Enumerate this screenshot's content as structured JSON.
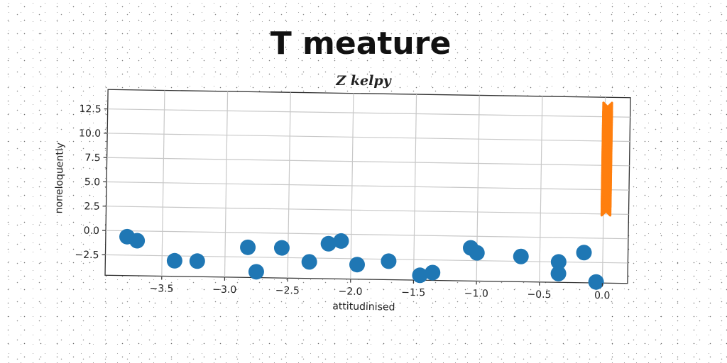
{
  "chart_data": {
    "type": "scatter",
    "title": "T meature",
    "subtitle": "Z kelpy",
    "xlabel": "attitudinised",
    "ylabel": "noneloquently",
    "xlim": [
      -3.95,
      0.2
    ],
    "ylim": [
      -4.6,
      14.5
    ],
    "x_ticks": [
      -3.5,
      -3.0,
      -2.5,
      -2.0,
      -1.5,
      -1.0,
      -0.5,
      0.0
    ],
    "x_tick_labels": [
      "−3.5",
      "−3.0",
      "−2.5",
      "−2.0",
      "−1.5",
      "−1.0",
      "−0.5",
      "0.0"
    ],
    "y_ticks": [
      -2.5,
      0.0,
      2.5,
      5.0,
      7.5,
      10.0,
      12.5
    ],
    "y_tick_labels": [
      "−2.5",
      "0.0",
      "2.5",
      "5.0",
      "7.5",
      "10.0",
      "12.5"
    ],
    "grid": true,
    "series": [
      {
        "marker": "circle",
        "color": "#1f77b4",
        "points": [
          [
            -3.78,
            -0.6
          ],
          [
            -3.7,
            -1.0
          ],
          [
            -3.4,
            -3.0
          ],
          [
            -3.22,
            -3.0
          ],
          [
            -2.82,
            -1.5
          ],
          [
            -2.75,
            -4.0
          ],
          [
            -2.55,
            -1.5
          ],
          [
            -2.33,
            -2.9
          ],
          [
            -2.18,
            -1.0
          ],
          [
            -2.08,
            -0.7
          ],
          [
            -1.95,
            -3.1
          ],
          [
            -1.7,
            -2.7
          ],
          [
            -1.45,
            -4.1
          ],
          [
            -1.35,
            -3.8
          ],
          [
            -1.05,
            -1.2
          ],
          [
            -1.0,
            -1.7
          ],
          [
            -0.65,
            -2.0
          ],
          [
            -0.35,
            -2.5
          ],
          [
            -0.35,
            -3.7
          ],
          [
            -0.15,
            -1.5
          ],
          [
            -0.05,
            -4.5
          ]
        ]
      },
      {
        "marker": "x",
        "color": "#ff7f0e",
        "x": 0.02,
        "y_from": 2.8,
        "y_to": 13.5,
        "y_step": 0.1
      }
    ]
  }
}
